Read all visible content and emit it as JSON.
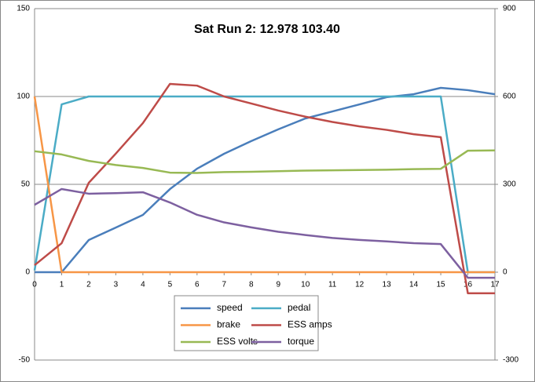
{
  "chart_data": {
    "type": "line",
    "title": "Sat Run 2: 12.978 103.40",
    "x": [
      0,
      1,
      2,
      3,
      4,
      5,
      6,
      7,
      8,
      9,
      10,
      11,
      12,
      13,
      14,
      15,
      16,
      17
    ],
    "xlim": [
      0,
      17
    ],
    "xticks": [
      0,
      1,
      2,
      3,
      4,
      5,
      6,
      7,
      8,
      9,
      10,
      11,
      12,
      13,
      14,
      15,
      16,
      17
    ],
    "ylim": [
      -50,
      150
    ],
    "yticks": [
      -50,
      0,
      50,
      100,
      150
    ],
    "y2lim": [
      -300,
      900
    ],
    "y2ticks": [
      -300,
      0,
      300,
      600,
      900
    ],
    "grid": true,
    "legend": "bottom",
    "series": [
      {
        "name": "speed",
        "color": "#4a7ebb",
        "values": [
          0,
          0,
          18.3,
          25.4,
          32.6,
          47.3,
          58.9,
          67.4,
          74.6,
          81.3,
          87.5,
          91.5,
          95.5,
          99.6,
          101.3,
          104.9,
          103.6,
          101.3
        ]
      },
      {
        "name": "pedal",
        "color": "#4bacc6",
        "values": [
          1,
          95.5,
          100,
          100,
          100,
          100,
          100,
          100,
          100,
          100,
          100,
          100,
          100,
          100,
          100,
          100,
          0,
          0
        ]
      },
      {
        "name": "brake",
        "color": "#f79646",
        "values": [
          100,
          0,
          0,
          0,
          0,
          0,
          0,
          0,
          0,
          0,
          0,
          0,
          0,
          0,
          0,
          0,
          0,
          0
        ]
      },
      {
        "name": "ESS amps",
        "color": "#be4b48",
        "axis": "y2",
        "values": [
          24,
          99,
          305,
          405,
          509,
          643,
          637,
          600,
          576,
          552,
          531,
          513,
          498,
          486,
          471,
          461,
          -72,
          -72
        ]
      },
      {
        "name": "ESS volts",
        "color": "#98b954",
        "axis": "y2",
        "values": [
          413,
          402,
          380,
          366,
          356,
          340,
          339,
          342,
          343,
          345,
          347,
          348,
          349,
          350,
          352,
          353,
          415,
          416
        ]
      },
      {
        "name": "torque",
        "color": "#7d60a0",
        "axis": "y2",
        "values": [
          230,
          284,
          268,
          270,
          273,
          238,
          196,
          170,
          153,
          138,
          127,
          117,
          110,
          105,
          99,
          96,
          -19,
          -19
        ]
      }
    ]
  }
}
